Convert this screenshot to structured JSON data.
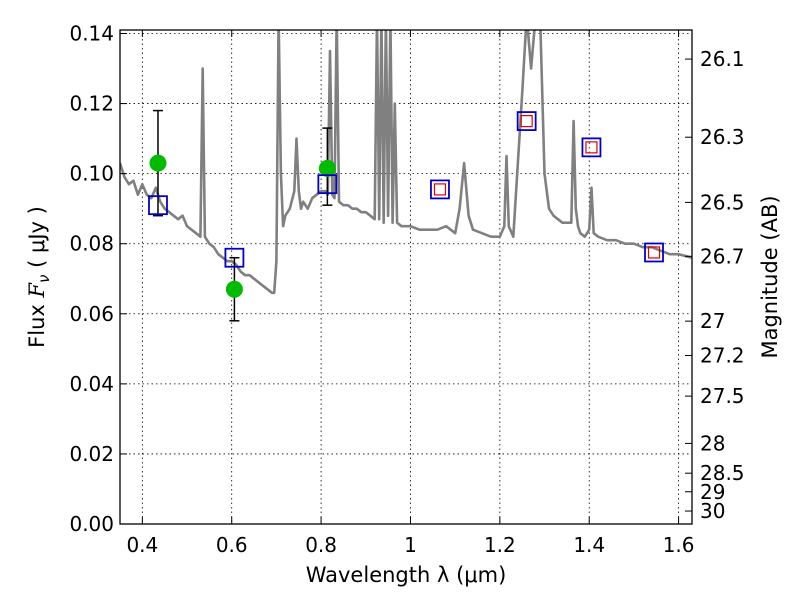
{
  "chart_data": {
    "type": "scatter",
    "xlabel": "Wavelength  λ (μm)",
    "ylabel": "Flux  Fν  ( μJy )",
    "ylabel_parts": {
      "pre": "Flux  ",
      "sym": "F",
      "sub": "ν",
      "post": "  ( μJy )"
    },
    "ylabel_right": "Magnitude (AB)",
    "xlim": [
      0.35,
      1.63
    ],
    "ylim": [
      0.0,
      0.141
    ],
    "x_ticks": [
      0.4,
      0.6,
      0.8,
      1.0,
      1.2,
      1.4,
      1.6
    ],
    "x_tick_labels": [
      "0.4",
      "0.6",
      "0.8",
      "1",
      "1.2",
      "1.4",
      "1.6"
    ],
    "y_ticks": [
      0.0,
      0.02,
      0.04,
      0.06,
      0.08,
      0.1,
      0.12,
      0.14
    ],
    "y_tick_labels": [
      "0.00",
      "0.02",
      "0.04",
      "0.06",
      "0.08",
      "0.10",
      "0.12",
      "0.14"
    ],
    "mag_ticks": [
      {
        "label": "26.1",
        "flux": 0.1327
      },
      {
        "label": "26.3",
        "flux": 0.1104
      },
      {
        "label": "26.5",
        "flux": 0.0918
      },
      {
        "label": "26.7",
        "flux": 0.0764
      },
      {
        "label": "27",
        "flux": 0.0579
      },
      {
        "label": "27.2",
        "flux": 0.0481
      },
      {
        "label": "27.5",
        "flux": 0.0365
      },
      {
        "label": "28",
        "flux": 0.023
      },
      {
        "label": "28.5",
        "flux": 0.0145
      },
      {
        "label": "29",
        "flux": 0.0092
      },
      {
        "label": "30",
        "flux": 0.0037
      }
    ],
    "grid": true,
    "colors": {
      "model": "#808080",
      "observed": "#00bb00",
      "errorbar": "#000000",
      "model_band": "#0000cc",
      "model_band_inner": "#dd0000"
    },
    "series": [
      {
        "name": "model_spectrum",
        "type": "line",
        "x": [
          0.35,
          0.36,
          0.37,
          0.38,
          0.39,
          0.4,
          0.41,
          0.42,
          0.43,
          0.44,
          0.45,
          0.46,
          0.47,
          0.48,
          0.49,
          0.5,
          0.51,
          0.52,
          0.53,
          0.535,
          0.54,
          0.545,
          0.55,
          0.56,
          0.57,
          0.58,
          0.59,
          0.6,
          0.61,
          0.62,
          0.63,
          0.64,
          0.65,
          0.66,
          0.67,
          0.68,
          0.69,
          0.695,
          0.7,
          0.705,
          0.71,
          0.715,
          0.72,
          0.73,
          0.74,
          0.745,
          0.75,
          0.755,
          0.76,
          0.77,
          0.78,
          0.79,
          0.8,
          0.81,
          0.815,
          0.82,
          0.825,
          0.83,
          0.835,
          0.84,
          0.85,
          0.86,
          0.87,
          0.88,
          0.89,
          0.9,
          0.91,
          0.92,
          0.925,
          0.93,
          0.935,
          0.94,
          0.945,
          0.95,
          0.955,
          0.96,
          0.965,
          0.97,
          0.98,
          0.99,
          1.0,
          1.02,
          1.04,
          1.06,
          1.08,
          1.1,
          1.11,
          1.12,
          1.13,
          1.14,
          1.16,
          1.18,
          1.2,
          1.21,
          1.215,
          1.22,
          1.23,
          1.25,
          1.26,
          1.27,
          1.28,
          1.29,
          1.3,
          1.31,
          1.32,
          1.33,
          1.34,
          1.35,
          1.36,
          1.365,
          1.37,
          1.375,
          1.38,
          1.39,
          1.4,
          1.405,
          1.41,
          1.42,
          1.44,
          1.46,
          1.48,
          1.5,
          1.52,
          1.54,
          1.56,
          1.58,
          1.6,
          1.63
        ],
        "y": [
          0.103,
          0.099,
          0.097,
          0.098,
          0.094,
          0.097,
          0.094,
          0.093,
          0.096,
          0.092,
          0.09,
          0.089,
          0.088,
          0.087,
          0.088,
          0.085,
          0.084,
          0.083,
          0.082,
          0.13,
          0.082,
          0.081,
          0.08,
          0.079,
          0.077,
          0.076,
          0.075,
          0.075,
          0.074,
          0.072,
          0.071,
          0.071,
          0.07,
          0.069,
          0.068,
          0.067,
          0.066,
          0.066,
          0.075,
          0.145,
          0.1,
          0.085,
          0.088,
          0.09,
          0.095,
          0.11,
          0.095,
          0.09,
          0.092,
          0.09,
          0.093,
          0.094,
          0.095,
          0.095,
          0.094,
          0.135,
          0.094,
          0.093,
          0.145,
          0.092,
          0.091,
          0.091,
          0.09,
          0.09,
          0.089,
          0.089,
          0.088,
          0.087,
          0.145,
          0.087,
          0.145,
          0.086,
          0.145,
          0.088,
          0.145,
          0.086,
          0.12,
          0.086,
          0.085,
          0.085,
          0.085,
          0.084,
          0.084,
          0.084,
          0.085,
          0.083,
          0.09,
          0.103,
          0.088,
          0.084,
          0.083,
          0.082,
          0.082,
          0.085,
          0.105,
          0.085,
          0.082,
          0.123,
          0.145,
          0.13,
          0.145,
          0.145,
          0.1,
          0.09,
          0.088,
          0.087,
          0.086,
          0.086,
          0.086,
          0.115,
          0.09,
          0.085,
          0.083,
          0.082,
          0.084,
          0.096,
          0.083,
          0.082,
          0.081,
          0.081,
          0.08,
          0.08,
          0.079,
          0.079,
          0.078,
          0.077,
          0.077,
          0.076
        ]
      },
      {
        "name": "observed",
        "type": "errorbar",
        "x": [
          0.435,
          0.606,
          0.814
        ],
        "y": [
          0.103,
          0.067,
          0.1015
        ],
        "ylow": [
          0.088,
          0.058,
          0.091
        ],
        "yhigh": [
          0.118,
          0.076,
          0.113
        ]
      },
      {
        "name": "model_photometry",
        "type": "markers",
        "x": [
          0.435,
          0.606,
          0.814,
          1.066,
          1.26,
          1.405,
          1.545
        ],
        "y": [
          0.091,
          0.076,
          0.097,
          0.0955,
          0.115,
          0.1075,
          0.0775
        ],
        "inner_squares": [
          false,
          false,
          false,
          true,
          true,
          true,
          true
        ]
      }
    ]
  }
}
